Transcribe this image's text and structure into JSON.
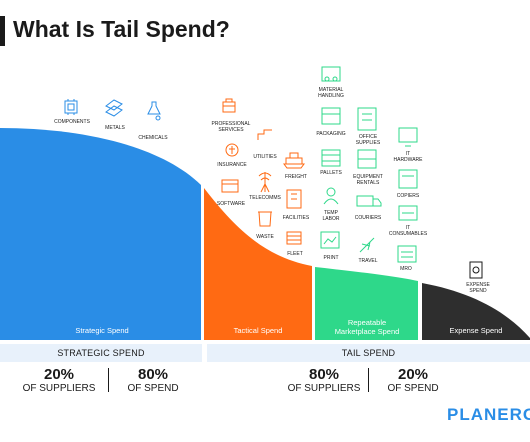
{
  "title": "What Is Tail Spend?",
  "segments": [
    {
      "label": "Strategic Spend",
      "color": "#2a8de6"
    },
    {
      "label": "Tactical Spend",
      "color": "#ff6a13"
    },
    {
      "label": "Repetable Marketplace Spend",
      "color": "#2ed88a"
    },
    {
      "label": "Expense Spend",
      "color": "#2e2e2e"
    }
  ],
  "icons": {
    "strategic": [
      "COMPONENTS",
      "METALS",
      "CHEMICALS"
    ],
    "tactical": [
      "PROFESSIONAL SERVICES",
      "UTILITIES",
      "INSURANCE",
      "FREIGHT",
      "TELECOMMS",
      "SOFTWARE",
      "FACILITIES",
      "WASTE",
      "FLEET"
    ],
    "marketplace": [
      "MATERIAL HANDLING",
      "PACKAGING",
      "OFFICE SUPPLIES",
      "IT HARDWARE",
      "PALLETS",
      "EQUIPMENT RENTALS",
      "COPIERS",
      "TEMP LABOR",
      "COURIERS",
      "IT CONSUMABLES",
      "PRINT",
      "TRAVEL",
      "MRO"
    ],
    "expense": [
      "EXPENSE SPEND"
    ]
  },
  "bands": {
    "strategic": "STRATEGIC SPEND",
    "tail": "TAIL SPEND"
  },
  "stats": {
    "strategic_suppliers": {
      "value": "20%",
      "label": "OF SUPPLIERS"
    },
    "strategic_spend": {
      "value": "80%",
      "label": "OF SPEND"
    },
    "tail_suppliers": {
      "value": "80%",
      "label": "OF SUPPLIERS"
    },
    "tail_spend": {
      "value": "20%",
      "label": "OF SPEND"
    }
  },
  "brand": "PLANERGY",
  "colors": {
    "strategic": "#2a8de6",
    "tactical": "#ff6a13",
    "marketplace": "#2ed88a",
    "expense": "#2e2e2e",
    "icon_strategic": "#2a8de6",
    "icon_tactical": "#ff6a13",
    "icon_marketplace": "#2ed88a"
  }
}
